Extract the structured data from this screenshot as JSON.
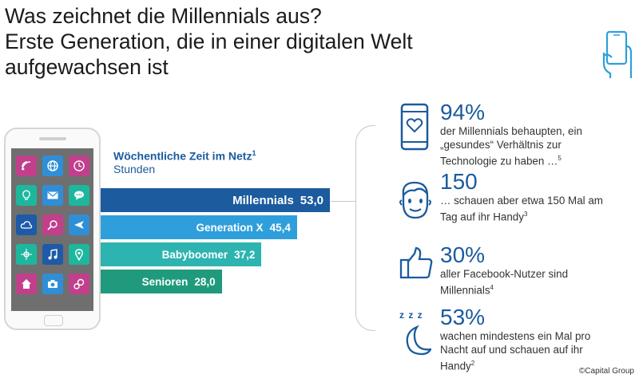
{
  "title": {
    "line1": "Was zeichnet die Millennials aus?",
    "line2": "Erste Generation, die in einer digitalen Welt",
    "line3": "aufgewachsen ist"
  },
  "colors": {
    "dark_blue": "#1b5b9e",
    "mid_blue": "#2f9fdb",
    "teal": "#2db3b0",
    "green_teal": "#1f9a7c"
  },
  "apps": [
    {
      "icon": "wifi-icon",
      "color": "#c23f8c"
    },
    {
      "icon": "globe-icon",
      "color": "#2f8fd6"
    },
    {
      "icon": "clock-icon",
      "color": "#c23f8c"
    },
    {
      "icon": "bulb-icon",
      "color": "#1db79e"
    },
    {
      "icon": "mail-icon",
      "color": "#2f8fd6"
    },
    {
      "icon": "chat-icon",
      "color": "#1db79e"
    },
    {
      "icon": "cloud-icon",
      "color": "#1e5aa8"
    },
    {
      "icon": "search-icon",
      "color": "#c23f8c"
    },
    {
      "icon": "plane-icon",
      "color": "#2f8fd6"
    },
    {
      "icon": "compass-icon",
      "color": "#1db79e"
    },
    {
      "icon": "music-icon",
      "color": "#1e5aa8"
    },
    {
      "icon": "location-icon",
      "color": "#1db79e"
    },
    {
      "icon": "home-icon",
      "color": "#c23f8c"
    },
    {
      "icon": "camera-icon",
      "color": "#2f8fd6"
    },
    {
      "icon": "settings-icon",
      "color": "#c23f8c"
    }
  ],
  "chart_data": {
    "type": "bar",
    "orientation": "horizontal",
    "title": "Wöchentliche Zeit im Netz",
    "title_footnote": "1",
    "subtitle": "Stunden",
    "categories": [
      "Millennials",
      "Generation X",
      "Babyboomer",
      "Senioren"
    ],
    "values": [
      53.0,
      45.4,
      37.2,
      28.0
    ],
    "value_labels": [
      "53,0",
      "45,4",
      "37,2",
      "28,0"
    ],
    "xlim": [
      0,
      53
    ]
  },
  "stats": [
    {
      "number": "94%",
      "lines": [
        "der Millennials behaupten, ein",
        "„gesundes“ Verhältnis zur",
        "Technologie zu haben …"
      ],
      "footnote": "5",
      "icon": "phone-heart-icon"
    },
    {
      "number": "150",
      "lines": [
        "… schauen aber etwa 150 Mal am",
        "Tag auf ihr Handy"
      ],
      "footnote": "3",
      "icon": "face-icon"
    },
    {
      "number": "30%",
      "lines": [
        "aller Facebook-Nutzer sind",
        "Millennials"
      ],
      "footnote": "4",
      "icon": "thumbs-up-icon"
    },
    {
      "number": "53%",
      "lines": [
        "wachen mindestens ein Mal pro",
        "Nacht auf und schauen auf ihr",
        "Handy"
      ],
      "footnote": "2",
      "icon": "moon-sleep-icon",
      "zzz": "z z z"
    }
  ],
  "copyright": "©Capital Group"
}
